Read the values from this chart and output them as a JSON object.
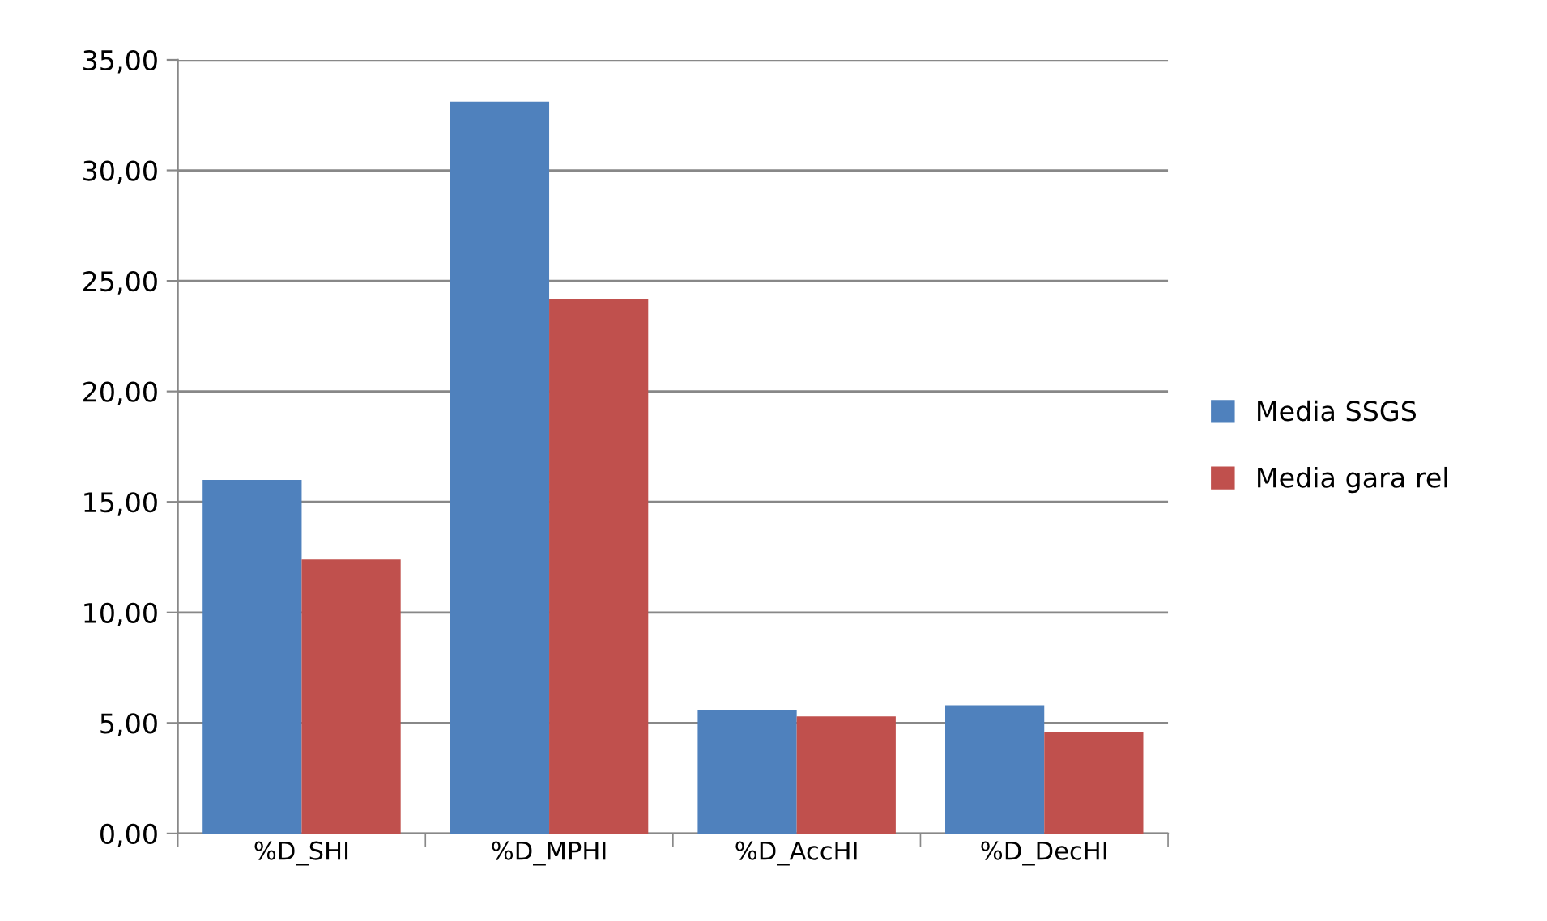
{
  "chart_data": {
    "type": "bar",
    "categories": [
      "%D_SHI",
      "%D_MPHI",
      "%D_AccHI",
      "%D_DecHI"
    ],
    "series": [
      {
        "name": "Media SSGS",
        "color": "#4f81bd",
        "values": [
          16.0,
          33.1,
          5.6,
          5.8
        ]
      },
      {
        "name": "Media gara rel",
        "color": "#c0504d",
        "values": [
          12.4,
          24.2,
          5.3,
          4.6
        ]
      }
    ],
    "ylim": [
      0,
      35
    ],
    "yticks": [
      {
        "value": 0,
        "label": "0,00"
      },
      {
        "value": 5,
        "label": "5,00"
      },
      {
        "value": 10,
        "label": "10,00"
      },
      {
        "value": 15,
        "label": "15,00"
      },
      {
        "value": 20,
        "label": "20,00"
      },
      {
        "value": 25,
        "label": "25,00"
      },
      {
        "value": 30,
        "label": "30,00"
      },
      {
        "value": 35,
        "label": "35,00"
      }
    ],
    "grid": "y",
    "legend": "right"
  }
}
